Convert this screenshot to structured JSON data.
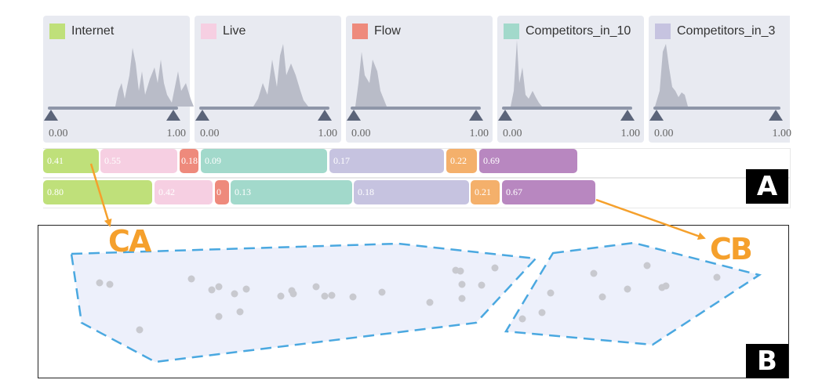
{
  "attributes": [
    {
      "label": "Internet",
      "color": "#bfe07a",
      "min": "0.00",
      "max": "1.00"
    },
    {
      "label": "Live",
      "color": "#f6cfe2",
      "min": "0.00",
      "max": "1.00"
    },
    {
      "label": "Flow",
      "color": "#ee8a7c",
      "min": "0.00",
      "max": "1.00"
    },
    {
      "label": "Competitors_in_10",
      "color": "#a2d9cb",
      "min": "0.00",
      "max": "1.00"
    },
    {
      "label": "Competitors_in_3",
      "color": "#c6c3e0",
      "min": "0.00",
      "max": "1.00"
    }
  ],
  "rows": [
    {
      "segments": [
        {
          "text": "0.41",
          "color": "#bfe07a"
        },
        {
          "text": "0.55",
          "color": "#f6cfe2"
        },
        {
          "text": "0.18",
          "color": "#ee8a7c"
        },
        {
          "text": "0.09",
          "color": "#a2d9cb"
        },
        {
          "text": "0.17",
          "color": "#c6c3e0"
        },
        {
          "text": "0.22",
          "color": "#f4b06b"
        },
        {
          "text": "0.69",
          "color": "#b887c0"
        }
      ]
    },
    {
      "segments": [
        {
          "text": "0.80",
          "color": "#bfe07a"
        },
        {
          "text": "0.42",
          "color": "#f6cfe2"
        },
        {
          "text": "0",
          "color": "#ee8a7c"
        },
        {
          "text": "0.13",
          "color": "#a2d9cb"
        },
        {
          "text": "0.18",
          "color": "#c6c3e0"
        },
        {
          "text": "0.21",
          "color": "#f4b06b"
        },
        {
          "text": "0.67",
          "color": "#b887c0"
        }
      ]
    }
  ],
  "labels": {
    "view_a": "A",
    "view_b": "B",
    "cluster_a": "CA",
    "cluster_b": "CB"
  },
  "colors": {
    "hull_stroke": "#4aa8e0",
    "hull_fill": "#edf0fb",
    "arrow": "#f5a02c",
    "point": "#c8c9cf",
    "histogram": "#b9bcc8",
    "slider": "#8e96a8"
  }
}
